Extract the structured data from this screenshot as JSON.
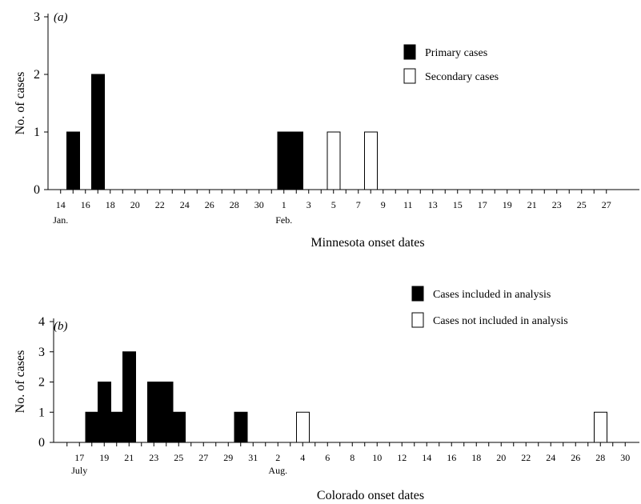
{
  "chart_data": [
    {
      "type": "bar",
      "panel_label": "(a)",
      "xlabel": "Minnesota onset dates",
      "ylabel": "No. of cases",
      "ylim": [
        0,
        3
      ],
      "yticks": [
        "0",
        "1",
        "2",
        "3"
      ],
      "x_ticks": [
        "14",
        "16",
        "18",
        "20",
        "22",
        "24",
        "26",
        "28",
        "30",
        "1",
        "3",
        "5",
        "7",
        "9",
        "11",
        "13",
        "15",
        "17",
        "19",
        "21",
        "23",
        "25",
        "27"
      ],
      "x_sublabels": [
        {
          "under": "14",
          "text": "Jan."
        },
        {
          "under": "1",
          "text": "Feb."
        }
      ],
      "x_dates": [
        "Jan 14",
        "Jan 15",
        "Jan 16",
        "Jan 17",
        "Jan 18",
        "Jan 19",
        "Jan 20",
        "Jan 21",
        "Jan 22",
        "Jan 23",
        "Jan 24",
        "Jan 25",
        "Jan 26",
        "Jan 27",
        "Jan 28",
        "Jan 29",
        "Jan 30",
        "Jan 31",
        "Feb 1",
        "Feb 2",
        "Feb 3",
        "Feb 4",
        "Feb 5",
        "Feb 6",
        "Feb 7",
        "Feb 8",
        "Feb 9",
        "Feb 10",
        "Feb 11",
        "Feb 12",
        "Feb 13",
        "Feb 14",
        "Feb 15",
        "Feb 16",
        "Feb 17",
        "Feb 18",
        "Feb 19",
        "Feb 20",
        "Feb 21",
        "Feb 22",
        "Feb 23",
        "Feb 24",
        "Feb 25",
        "Feb 26",
        "Feb 27"
      ],
      "series": [
        {
          "name": "Primary cases",
          "fill": "#000000",
          "points": [
            {
              "x": "Jan 15",
              "y": 1
            },
            {
              "x": "Jan 17",
              "y": 2
            },
            {
              "x": "Feb 1",
              "y": 1
            },
            {
              "x": "Feb 2",
              "y": 1
            }
          ]
        },
        {
          "name": "Secondary cases",
          "fill": "#ffffff",
          "points": [
            {
              "x": "Feb 5",
              "y": 1
            },
            {
              "x": "Feb 8",
              "y": 1
            }
          ]
        }
      ],
      "legend_position": "top-right"
    },
    {
      "type": "bar",
      "panel_label": "(b)",
      "xlabel": "Colorado onset dates",
      "ylabel": "No. of cases",
      "ylim": [
        0,
        4
      ],
      "yticks": [
        "0",
        "1",
        "2",
        "3",
        "4"
      ],
      "x_ticks": [
        "17",
        "19",
        "21",
        "23",
        "25",
        "27",
        "29",
        "31",
        "2",
        "4",
        "6",
        "8",
        "10",
        "12",
        "14",
        "16",
        "18",
        "20",
        "22",
        "24",
        "26",
        "28",
        "30"
      ],
      "x_sublabels": [
        {
          "under": "17",
          "text": "July"
        },
        {
          "under": "2",
          "text": "Aug."
        }
      ],
      "x_dates": [
        "Jul 16",
        "Jul 17",
        "Jul 18",
        "Jul 19",
        "Jul 20",
        "Jul 21",
        "Jul 22",
        "Jul 23",
        "Jul 24",
        "Jul 25",
        "Jul 26",
        "Jul 27",
        "Jul 28",
        "Jul 29",
        "Jul 30",
        "Jul 31",
        "Aug 1",
        "Aug 2",
        "Aug 3",
        "Aug 4",
        "Aug 5",
        "Aug 6",
        "Aug 7",
        "Aug 8",
        "Aug 9",
        "Aug 10",
        "Aug 11",
        "Aug 12",
        "Aug 13",
        "Aug 14",
        "Aug 15",
        "Aug 16",
        "Aug 17",
        "Aug 18",
        "Aug 19",
        "Aug 20",
        "Aug 21",
        "Aug 22",
        "Aug 23",
        "Aug 24",
        "Aug 25",
        "Aug 26",
        "Aug 27",
        "Aug 28",
        "Aug 29",
        "Aug 30"
      ],
      "series": [
        {
          "name": "Cases included in analysis",
          "fill": "#000000",
          "points": [
            {
              "x": "Jul 18",
              "y": 1
            },
            {
              "x": "Jul 19",
              "y": 2
            },
            {
              "x": "Jul 20",
              "y": 1
            },
            {
              "x": "Jul 21",
              "y": 3
            },
            {
              "x": "Jul 23",
              "y": 2
            },
            {
              "x": "Jul 24",
              "y": 2
            },
            {
              "x": "Jul 25",
              "y": 1
            },
            {
              "x": "Jul 30",
              "y": 1
            }
          ]
        },
        {
          "name": "Cases not included in analysis",
          "fill": "#ffffff",
          "points": [
            {
              "x": "Aug 4",
              "y": 1
            },
            {
              "x": "Aug 28",
              "y": 1
            }
          ]
        }
      ],
      "legend_position": "top-right"
    }
  ]
}
